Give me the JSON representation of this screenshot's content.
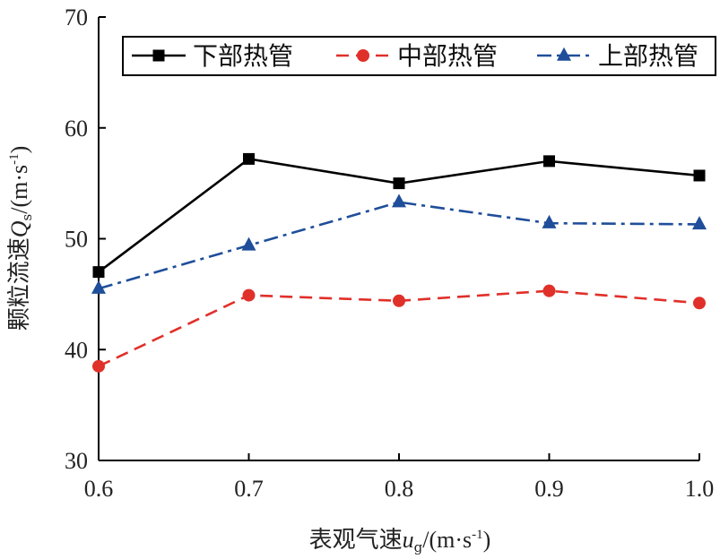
{
  "chart_data": {
    "type": "line",
    "x": [
      0.6,
      0.7,
      0.8,
      0.9,
      1.0
    ],
    "x_tick_labels": [
      "0.6",
      "0.7",
      "0.8",
      "0.9",
      "1.0"
    ],
    "y_ticks": [
      30,
      40,
      50,
      60,
      70
    ],
    "y_tick_labels": [
      "30",
      "40",
      "50",
      "60",
      "70"
    ],
    "xlim": [
      0.6,
      1.0
    ],
    "ylim": [
      30,
      70
    ],
    "xlabel": {
      "main": "表观气速",
      "var": "u",
      "sub": "g",
      "unit_pre": "/(m·s",
      "unit_sup": "-1",
      "unit_post": ")"
    },
    "ylabel": {
      "main": "颗粒流速",
      "var": "Q",
      "sub": "s",
      "unit_pre": "/(m·s",
      "unit_sup": "-1",
      "unit_post": ")"
    },
    "grid": false,
    "legend_position": "top-right",
    "series": [
      {
        "name": "下部热管",
        "values": [
          47.0,
          57.2,
          55.0,
          57.0,
          55.7
        ],
        "color": "#000000",
        "line_style": "solid",
        "marker": "square"
      },
      {
        "name": "中部热管",
        "values": [
          38.5,
          44.9,
          44.4,
          45.3,
          44.2
        ],
        "color": "#e0302a",
        "line_style": "dashed",
        "marker": "circle"
      },
      {
        "name": "上部热管",
        "values": [
          45.5,
          49.4,
          53.3,
          51.4,
          51.3
        ],
        "color": "#1f4e9a",
        "line_style": "dash-dot",
        "marker": "triangle"
      }
    ]
  }
}
